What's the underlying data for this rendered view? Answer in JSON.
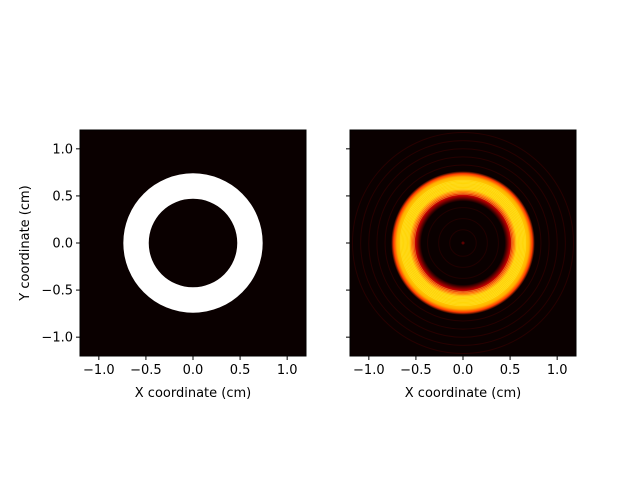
{
  "chart_data": [
    {
      "type": "heatmap",
      "description_of_content": "binary annulus aperture",
      "xlabel": "X coordinate (cm)",
      "ylabel": "Y coordinate (cm)",
      "xlim": [
        -1.2,
        1.2
      ],
      "ylim": [
        -1.2,
        1.2
      ],
      "xticks": [
        -1.0,
        -0.5,
        0.0,
        0.5,
        1.0
      ],
      "yticks": [
        -1.0,
        -0.5,
        0.0,
        0.5,
        1.0
      ],
      "xtick_labels": [
        "−1.0",
        "−0.5",
        "0.0",
        "0.5",
        "1.0"
      ],
      "ytick_labels": [
        "−1.0",
        "−0.5",
        "0.0",
        "0.5",
        "1.0"
      ],
      "annulus": {
        "inner_radius": 0.47,
        "outer_radius": 0.74,
        "center": [
          0.0,
          0.0
        ]
      },
      "background_color": "#0a0000",
      "fill_color": "#ffffff",
      "colormap": "hot"
    },
    {
      "type": "heatmap",
      "description_of_content": "diffracted intensity of annulus",
      "xlabel": "X coordinate (cm)",
      "ylabel": "",
      "xlim": [
        -1.2,
        1.2
      ],
      "ylim": [
        -1.2,
        1.2
      ],
      "xticks": [
        -1.0,
        -0.5,
        0.0,
        0.5,
        1.0
      ],
      "yticks": [
        -1.0,
        -0.5,
        0.0,
        0.5,
        1.0
      ],
      "xtick_labels": [
        "−1.0",
        "−0.5",
        "0.0",
        "0.5",
        "1.0"
      ],
      "ytick_labels_visible": false,
      "annulus": {
        "inner_radius": 0.47,
        "outer_radius": 0.72,
        "center": [
          0.0,
          0.0
        ]
      },
      "background_color": "#0a0000",
      "edge_color": "#ff2a00",
      "fill_color": "#ffd400",
      "colormap": "hot"
    }
  ]
}
